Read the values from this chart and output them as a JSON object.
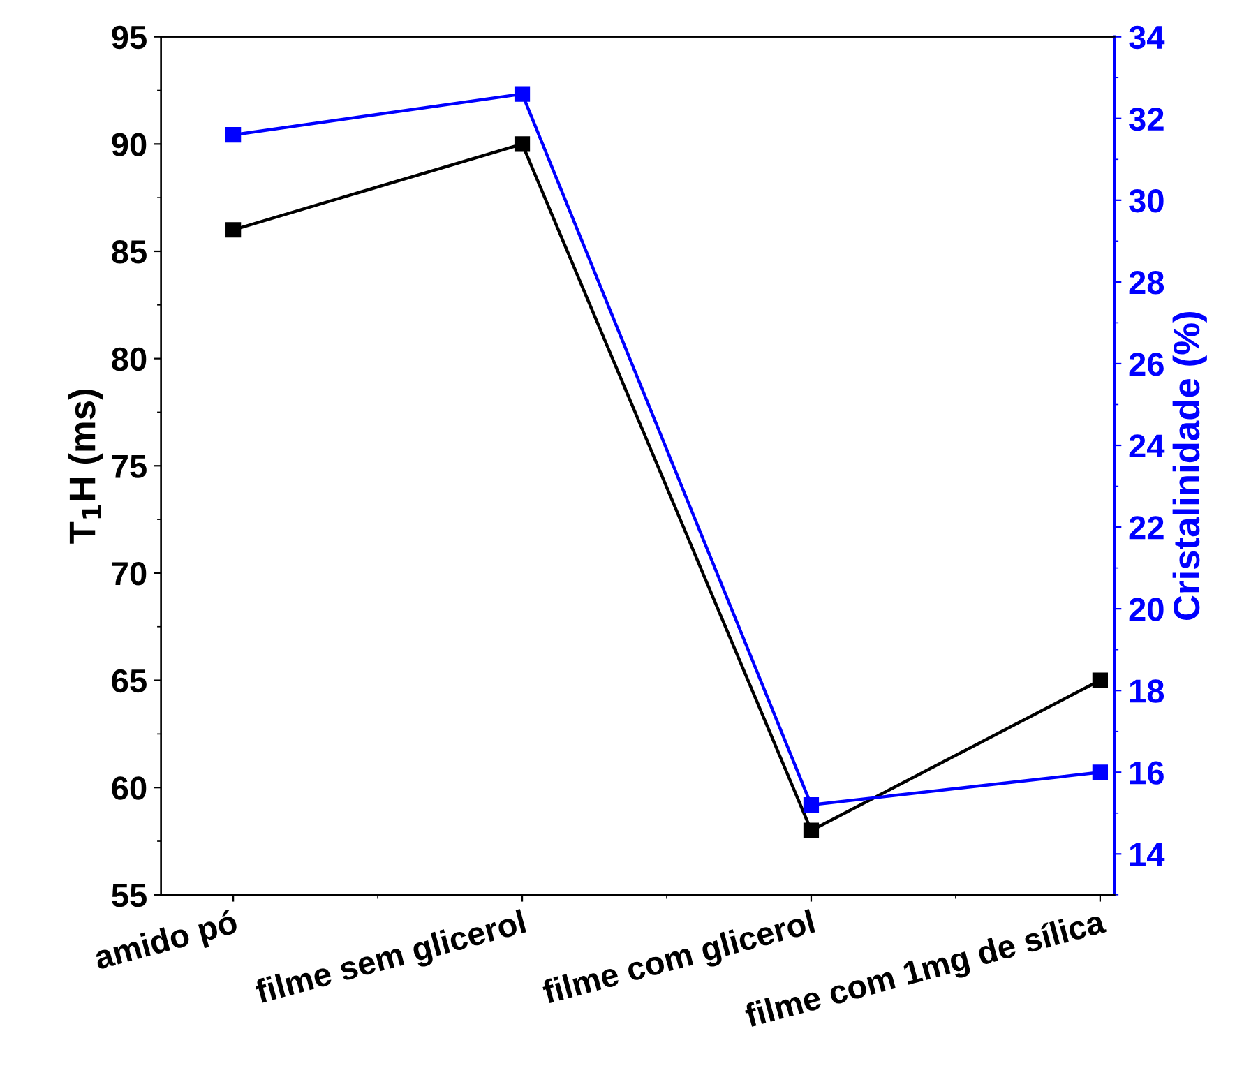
{
  "chart_data": {
    "type": "line",
    "categories": [
      "amido pó",
      "filme sem glicerol",
      "filme com glicerol",
      "filme com 1mg de sílica"
    ],
    "ylabel": "T$_{1}$H (ms)",
    "y2label": "Cristalinidade (%)",
    "series": [
      {
        "color": "#000000",
        "values": [
          86,
          90,
          58,
          65
        ]
      },
      {
        "color": "#0000ff",
        "values": [
          31.6,
          32.6,
          15.2,
          16.0
        ],
        "axis": "y2"
      }
    ],
    "ylim": [
      55,
      95
    ],
    "yticks": [
      55,
      60,
      65,
      70,
      75,
      80,
      85,
      90,
      95
    ],
    "y2lim": [
      13,
      34
    ],
    "y2ticks": [
      14,
      16,
      18,
      20,
      22,
      24,
      26,
      28,
      30,
      32,
      34
    ],
    "marker": "square",
    "line_style": "solid",
    "grid": false,
    "legend": false
  }
}
